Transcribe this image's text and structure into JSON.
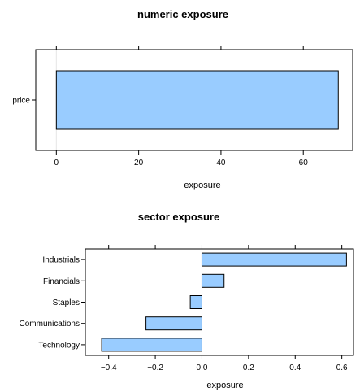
{
  "chart_data": [
    {
      "type": "bar",
      "orientation": "horizontal",
      "title": "numeric exposure",
      "xlabel": "exposure",
      "ylabel": "",
      "categories": [
        "price"
      ],
      "values": [
        68.5
      ],
      "xlim": [
        -5,
        72
      ],
      "xticks": [
        0,
        20,
        40,
        60
      ],
      "xtick_labels": [
        "0",
        "20",
        "40",
        "60"
      ],
      "zero_reference_line": true,
      "grid": false,
      "bar_fill": "#99ccff",
      "bar_stroke": "#000000"
    },
    {
      "type": "bar",
      "orientation": "horizontal",
      "title": "sector exposure",
      "xlabel": "exposure",
      "ylabel": "",
      "categories": [
        "Technology",
        "Communications",
        "Staples",
        "Financials",
        "Industrials"
      ],
      "values": [
        -0.43,
        -0.24,
        -0.05,
        0.095,
        0.62
      ],
      "xlim": [
        -0.5,
        0.65
      ],
      "xticks": [
        -0.4,
        -0.2,
        0.0,
        0.2,
        0.4,
        0.6
      ],
      "xtick_labels": [
        "−0.4",
        "−0.2",
        "0.0",
        "0.2",
        "0.4",
        "0.6"
      ],
      "grid": false,
      "bar_fill": "#99ccff",
      "bar_stroke": "#000000"
    }
  ]
}
